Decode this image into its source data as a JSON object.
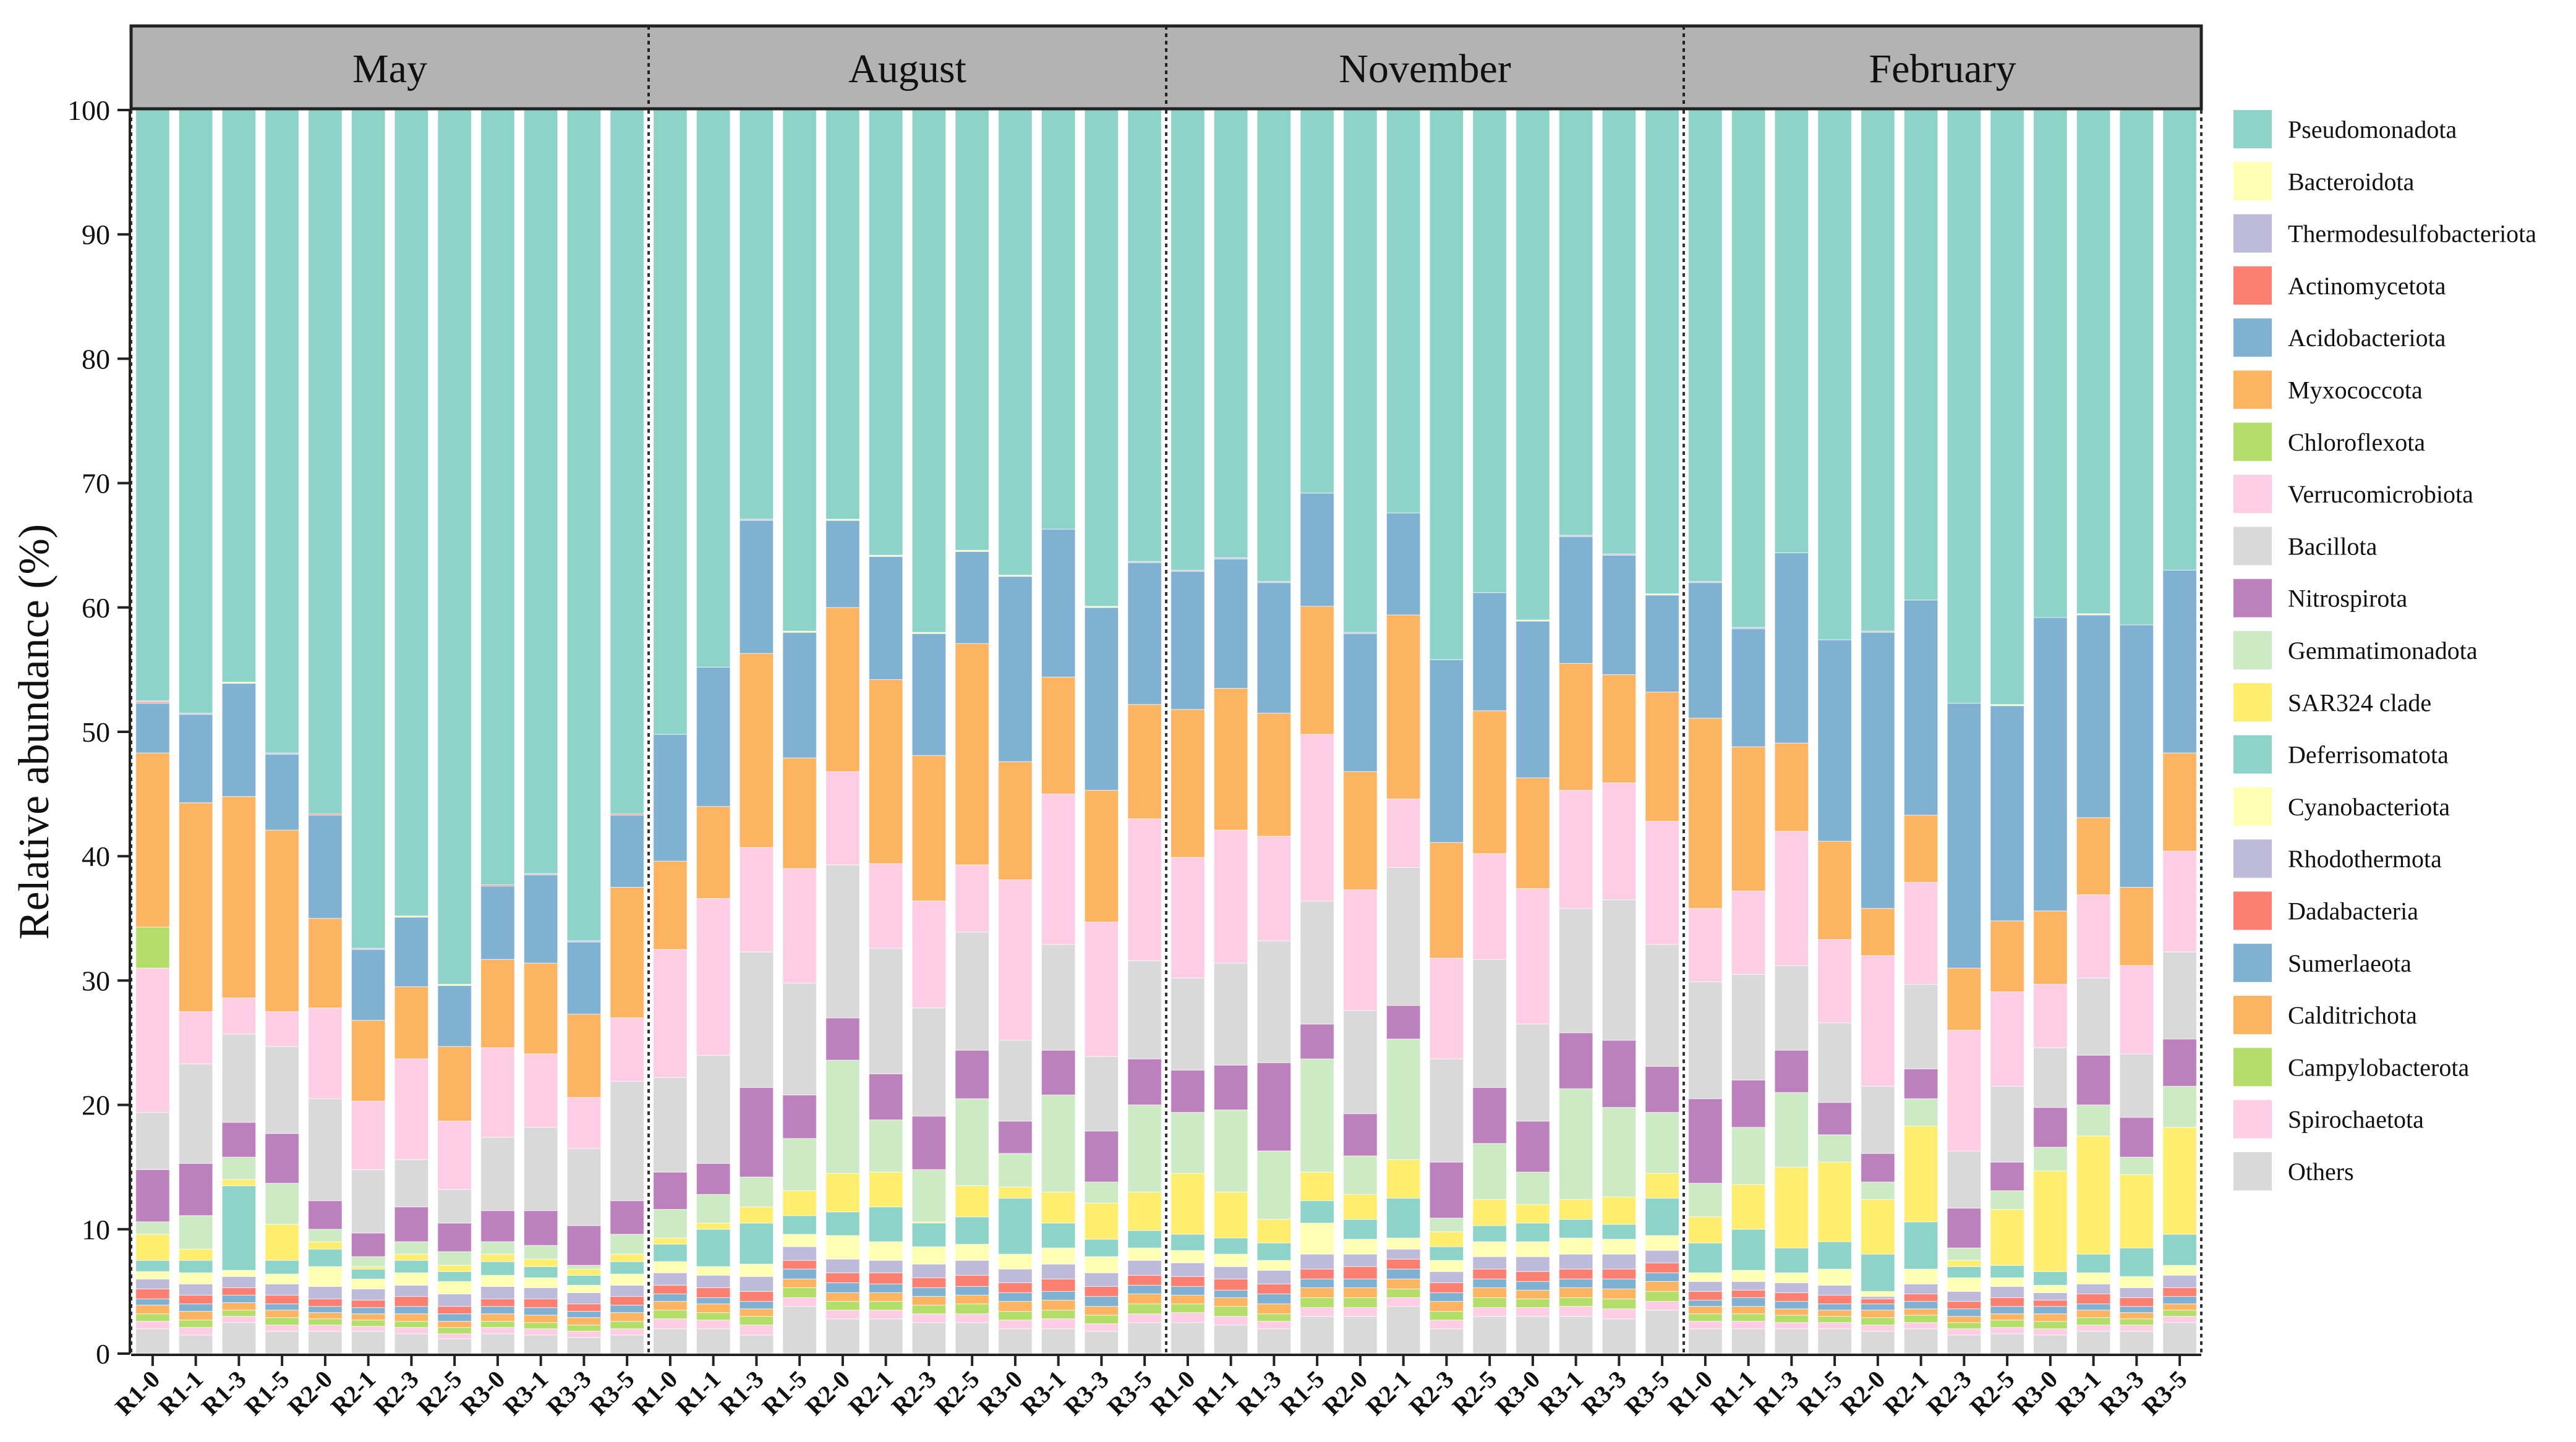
{
  "chart_data": {
    "type": "bar",
    "stacked": true,
    "ylabel": "Relative abundance  (%)",
    "ylim": [
      0,
      100
    ],
    "yticks": [
      0,
      10,
      20,
      30,
      40,
      50,
      60,
      70,
      80,
      90,
      100
    ],
    "panels": [
      "May",
      "August",
      "November",
      "February"
    ],
    "samples": [
      "R1-0",
      "R1-1",
      "R1-3",
      "R1-5",
      "R2-0",
      "R2-1",
      "R2-3",
      "R2-5",
      "R3-0",
      "R3-1",
      "R3-3",
      "R3-5"
    ],
    "legend": [
      {
        "name": "Pseudomonadota",
        "color": "#8dd3c7"
      },
      {
        "name": "Bacteroidota",
        "color": "#ffffb3"
      },
      {
        "name": "Thermodesulfobacteriota",
        "color": "#bebada"
      },
      {
        "name": "Actinomycetota",
        "color": "#fb8072"
      },
      {
        "name": "Acidobacteriota",
        "color": "#80b1d3"
      },
      {
        "name": "Myxococcota",
        "color": "#fdb462"
      },
      {
        "name": "Chloroflexota",
        "color": "#b3de69"
      },
      {
        "name": "Verrucomicrobiota",
        "color": "#fccde5"
      },
      {
        "name": "Bacillota",
        "color": "#d9d9d9"
      },
      {
        "name": "Nitrospirota",
        "color": "#bc80bd"
      },
      {
        "name": "Gemmatimonadota",
        "color": "#ccebc5"
      },
      {
        "name": "SAR324 clade",
        "color": "#ffed6f"
      },
      {
        "name": "Deferrisomatota",
        "color": "#8dd3c7"
      },
      {
        "name": "Cyanobacteriota",
        "color": "#ffffb3"
      },
      {
        "name": "Rhodothermota",
        "color": "#bebada"
      },
      {
        "name": "Dadabacteria",
        "color": "#fb8072"
      },
      {
        "name": "Sumerlaeota",
        "color": "#80b1d3"
      },
      {
        "name": "Calditrichota",
        "color": "#fdb462"
      },
      {
        "name": "Campylobacterota",
        "color": "#b3de69"
      },
      {
        "name": "Spirochaetota",
        "color": "#fccde5"
      },
      {
        "name": "Others",
        "color": "#d9d9d9"
      }
    ],
    "series_order_note": "Each sample: 21 boundaries = cumulative tops (%) from bottom (Others) upward; Pseudomonadota fills to 100.",
    "cumulative_tops": {
      "May": [
        [
          2.0,
          2.6,
          3.2,
          3.9,
          4.4,
          5.2,
          6.0,
          6.6,
          7.5,
          9.6,
          10.6,
          14.8,
          19.4,
          31.0,
          34.3,
          48.3,
          52.3,
          52.4,
          52.5,
          52.5,
          100
        ],
        [
          1.5,
          2.1,
          2.7,
          3.4,
          4.0,
          4.7,
          5.6,
          6.5,
          7.5,
          8.4,
          11.1,
          15.3,
          23.3,
          27.5,
          27.5,
          44.3,
          51.4,
          51.4,
          51.5,
          51.5,
          100
        ],
        [
          2.5,
          3.0,
          3.5,
          4.1,
          4.7,
          5.3,
          6.2,
          6.7,
          13.5,
          14.0,
          15.8,
          18.6,
          25.7,
          28.6,
          28.6,
          44.8,
          53.9,
          53.9,
          53.9,
          54.0,
          100
        ],
        [
          1.8,
          2.3,
          2.9,
          3.5,
          4.0,
          4.7,
          5.6,
          6.4,
          7.5,
          10.4,
          13.7,
          17.7,
          24.7,
          27.5,
          27.5,
          42.1,
          48.2,
          48.2,
          48.3,
          48.3,
          100
        ],
        [
          1.8,
          2.3,
          2.8,
          3.3,
          3.8,
          4.4,
          5.4,
          7.0,
          8.4,
          9.0,
          10.0,
          12.3,
          20.5,
          27.8,
          27.8,
          35.0,
          43.3,
          43.4,
          43.4,
          43.4,
          100
        ],
        [
          1.8,
          2.2,
          2.7,
          3.2,
          3.7,
          4.3,
          5.2,
          6.0,
          6.8,
          7.0,
          7.8,
          9.7,
          14.8,
          20.3,
          20.3,
          26.8,
          32.5,
          32.5,
          32.6,
          32.6,
          100
        ],
        [
          1.6,
          2.1,
          2.6,
          3.2,
          3.8,
          4.6,
          5.5,
          6.5,
          7.5,
          8.0,
          9.0,
          11.8,
          15.6,
          23.7,
          23.7,
          29.5,
          35.1,
          35.1,
          35.1,
          35.2,
          100
        ],
        [
          1.2,
          1.6,
          2.1,
          2.6,
          3.2,
          3.8,
          4.8,
          5.8,
          6.6,
          7.1,
          8.2,
          10.5,
          13.2,
          18.7,
          18.7,
          24.7,
          29.6,
          29.6,
          29.6,
          29.7,
          100
        ],
        [
          1.6,
          2.1,
          2.6,
          3.2,
          3.8,
          4.4,
          5.4,
          6.3,
          7.4,
          8.0,
          9.0,
          11.5,
          17.4,
          24.6,
          24.6,
          31.7,
          37.6,
          37.7,
          37.7,
          37.7,
          100
        ],
        [
          1.5,
          2.0,
          2.5,
          3.1,
          3.7,
          4.4,
          5.3,
          6.1,
          7.0,
          7.6,
          8.7,
          11.5,
          18.2,
          24.1,
          24.1,
          31.4,
          38.5,
          38.5,
          38.6,
          38.6,
          100
        ],
        [
          1.3,
          1.8,
          2.3,
          2.9,
          3.4,
          4.0,
          4.9,
          5.5,
          6.3,
          6.8,
          7.1,
          10.3,
          16.5,
          20.6,
          20.6,
          27.3,
          33.1,
          33.1,
          33.2,
          33.2,
          100
        ],
        [
          1.5,
          2.0,
          2.6,
          3.3,
          3.9,
          4.6,
          5.5,
          6.4,
          7.4,
          8.0,
          9.6,
          12.3,
          21.9,
          27.0,
          27.0,
          37.5,
          43.3,
          43.4,
          43.4,
          43.4,
          100
        ]
      ],
      "August": [
        [
          2.0,
          2.8,
          3.5,
          4.2,
          4.8,
          5.5,
          6.5,
          7.4,
          8.8,
          9.3,
          11.6,
          14.6,
          22.2,
          32.5,
          32.5,
          39.6,
          49.8,
          49.8,
          49.8,
          49.8,
          100
        ],
        [
          2.0,
          2.7,
          3.3,
          4.0,
          4.5,
          5.3,
          6.3,
          7.0,
          10.0,
          10.5,
          12.8,
          15.3,
          24.0,
          36.6,
          36.6,
          44.0,
          55.2,
          55.2,
          55.2,
          55.2,
          100
        ],
        [
          1.5,
          2.3,
          3.0,
          3.6,
          4.2,
          5.0,
          6.2,
          7.2,
          10.5,
          11.8,
          14.2,
          21.4,
          32.3,
          40.7,
          40.7,
          56.3,
          67.0,
          67.0,
          67.1,
          67.1,
          100
        ],
        [
          3.8,
          4.5,
          5.3,
          6.0,
          6.8,
          7.5,
          8.6,
          9.6,
          11.1,
          13.1,
          17.3,
          20.8,
          29.8,
          39.0,
          39.0,
          47.9,
          58.0,
          58.0,
          58.0,
          58.1,
          100
        ],
        [
          2.8,
          3.5,
          4.2,
          4.9,
          5.7,
          6.5,
          7.6,
          9.5,
          11.4,
          14.5,
          23.6,
          27.0,
          39.3,
          46.8,
          46.8,
          60.0,
          67.0,
          67.0,
          67.0,
          67.1,
          100
        ],
        [
          2.8,
          3.5,
          4.2,
          4.9,
          5.6,
          6.5,
          7.5,
          9.0,
          11.8,
          14.6,
          18.8,
          22.5,
          32.6,
          39.4,
          39.4,
          54.2,
          64.1,
          64.1,
          64.1,
          64.2,
          100
        ],
        [
          2.5,
          3.2,
          3.9,
          4.6,
          5.3,
          6.1,
          7.2,
          8.6,
          10.5,
          10.6,
          14.8,
          19.1,
          27.8,
          36.4,
          36.4,
          48.1,
          57.9,
          57.9,
          57.9,
          58.0,
          100
        ],
        [
          2.5,
          3.2,
          4.0,
          4.7,
          5.4,
          6.3,
          7.5,
          8.8,
          11.0,
          13.5,
          20.5,
          24.4,
          33.9,
          39.3,
          39.3,
          57.1,
          64.5,
          64.5,
          64.5,
          64.6,
          100
        ],
        [
          2.0,
          2.7,
          3.4,
          4.2,
          4.9,
          5.7,
          6.8,
          8.0,
          12.5,
          13.4,
          16.1,
          18.7,
          25.2,
          38.1,
          38.1,
          47.6,
          62.5,
          62.5,
          62.5,
          62.6,
          100
        ],
        [
          2.0,
          2.8,
          3.5,
          4.3,
          5.0,
          6.0,
          7.2,
          8.5,
          10.5,
          13.0,
          20.8,
          24.4,
          32.9,
          45.0,
          45.0,
          54.4,
          66.3,
          66.3,
          66.3,
          66.3,
          100
        ],
        [
          1.8,
          2.4,
          3.1,
          3.8,
          4.6,
          5.4,
          6.5,
          7.8,
          9.2,
          12.1,
          13.8,
          17.9,
          23.9,
          34.7,
          34.7,
          45.3,
          60.0,
          60.0,
          60.0,
          60.1,
          100
        ],
        [
          2.5,
          3.2,
          4.0,
          4.8,
          5.5,
          6.3,
          7.5,
          8.5,
          9.9,
          13.0,
          20.0,
          23.7,
          31.6,
          43.0,
          43.0,
          52.2,
          63.6,
          63.6,
          63.7,
          63.7,
          100
        ]
      ],
      "November": [
        [
          2.5,
          3.3,
          4.0,
          4.7,
          5.4,
          6.2,
          7.3,
          8.3,
          9.6,
          14.5,
          19.4,
          22.8,
          30.2,
          39.9,
          39.9,
          51.8,
          62.9,
          62.9,
          63.0,
          63.0,
          100
        ],
        [
          2.3,
          3.0,
          3.8,
          4.5,
          5.1,
          6.0,
          7.0,
          8.0,
          9.3,
          13.0,
          19.6,
          23.2,
          31.4,
          42.1,
          42.1,
          53.5,
          63.9,
          63.9,
          64.0,
          64.0,
          100
        ],
        [
          2.0,
          2.6,
          3.2,
          4.0,
          4.8,
          5.6,
          6.7,
          7.5,
          8.9,
          10.8,
          16.3,
          23.4,
          33.2,
          41.6,
          41.6,
          51.5,
          62.0,
          62.0,
          62.1,
          62.1,
          100
        ],
        [
          3.0,
          3.7,
          4.5,
          5.3,
          6.0,
          6.8,
          8.0,
          10.5,
          12.3,
          14.6,
          23.7,
          26.5,
          36.4,
          49.8,
          49.8,
          60.1,
          69.2,
          69.2,
          69.2,
          69.2,
          100
        ],
        [
          3.0,
          3.7,
          4.5,
          5.3,
          6.0,
          7.0,
          8.0,
          9.2,
          10.8,
          12.8,
          15.9,
          19.3,
          27.6,
          37.3,
          37.3,
          46.8,
          57.9,
          57.9,
          58.0,
          58.0,
          100
        ],
        [
          3.8,
          4.5,
          5.2,
          6.0,
          6.8,
          7.6,
          8.4,
          9.3,
          12.5,
          15.6,
          25.3,
          28.0,
          39.1,
          44.6,
          44.6,
          59.4,
          67.6,
          67.6,
          67.6,
          67.6,
          100
        ],
        [
          2.0,
          2.7,
          3.4,
          4.2,
          4.9,
          5.7,
          6.6,
          7.5,
          8.6,
          9.8,
          10.9,
          15.4,
          23.7,
          31.8,
          31.8,
          41.1,
          55.8,
          55.8,
          55.8,
          55.8,
          100
        ],
        [
          3.0,
          3.7,
          4.5,
          5.3,
          6.0,
          6.8,
          7.8,
          9.0,
          10.3,
          12.4,
          16.9,
          21.4,
          31.7,
          40.2,
          40.2,
          51.7,
          61.2,
          61.2,
          61.2,
          61.2,
          100
        ],
        [
          3.0,
          3.7,
          4.4,
          5.1,
          5.8,
          6.6,
          7.8,
          9.0,
          10.5,
          12.0,
          14.6,
          18.7,
          26.5,
          37.4,
          37.4,
          46.3,
          58.9,
          58.9,
          58.9,
          59.0,
          100
        ],
        [
          3.0,
          3.8,
          4.5,
          5.3,
          6.0,
          6.8,
          8.0,
          9.3,
          10.8,
          12.4,
          21.3,
          25.8,
          35.8,
          45.3,
          45.3,
          55.5,
          65.7,
          65.7,
          65.8,
          65.8,
          100
        ],
        [
          2.8,
          3.6,
          4.4,
          5.2,
          6.0,
          6.8,
          8.0,
          9.2,
          10.4,
          12.6,
          19.8,
          25.2,
          36.5,
          45.9,
          45.9,
          54.6,
          64.2,
          64.2,
          64.3,
          64.3,
          100
        ],
        [
          3.5,
          4.2,
          5.0,
          5.8,
          6.5,
          7.3,
          8.3,
          9.5,
          12.5,
          14.5,
          19.4,
          23.1,
          32.9,
          42.8,
          42.8,
          53.2,
          61.0,
          61.0,
          61.0,
          61.1,
          100
        ]
      ],
      "February": [
        [
          2.0,
          2.6,
          3.2,
          3.8,
          4.3,
          5.0,
          5.8,
          6.5,
          8.9,
          11.0,
          13.7,
          20.5,
          29.9,
          35.8,
          35.8,
          51.1,
          62.0,
          62.0,
          62.1,
          62.1,
          100
        ],
        [
          2.0,
          2.6,
          3.2,
          3.8,
          4.5,
          5.1,
          5.8,
          6.7,
          10.0,
          13.6,
          18.2,
          22.0,
          30.5,
          37.2,
          37.2,
          48.8,
          58.3,
          58.3,
          58.4,
          58.4,
          100
        ],
        [
          2.0,
          2.5,
          3.1,
          3.6,
          4.2,
          4.9,
          5.7,
          6.5,
          8.5,
          15.0,
          21.0,
          24.4,
          31.2,
          42.0,
          42.0,
          49.1,
          64.4,
          64.4,
          64.4,
          64.4,
          100
        ],
        [
          2.0,
          2.5,
          3.0,
          3.5,
          4.0,
          4.7,
          5.5,
          6.8,
          9.0,
          15.4,
          17.6,
          20.2,
          26.6,
          33.3,
          33.3,
          41.2,
          57.4,
          57.4,
          57.4,
          57.4,
          100
        ],
        [
          1.8,
          2.3,
          2.9,
          3.5,
          4.0,
          4.4,
          4.6,
          5.0,
          8.0,
          12.4,
          13.8,
          16.1,
          21.5,
          32.0,
          32.0,
          35.8,
          58.0,
          58.0,
          58.1,
          58.1,
          100
        ],
        [
          2.0,
          2.5,
          3.1,
          3.6,
          4.2,
          4.8,
          5.6,
          6.8,
          10.6,
          18.3,
          20.5,
          22.9,
          29.7,
          37.9,
          37.9,
          43.3,
          60.6,
          60.6,
          60.6,
          60.6,
          100
        ],
        [
          1.5,
          2.0,
          2.5,
          3.0,
          3.6,
          4.2,
          5.0,
          6.1,
          7.0,
          7.5,
          8.5,
          11.7,
          16.3,
          26.0,
          26.0,
          31.0,
          52.3,
          52.3,
          52.3,
          52.3,
          100
        ],
        [
          1.6,
          2.1,
          2.7,
          3.2,
          3.8,
          4.5,
          5.4,
          6.1,
          7.1,
          11.6,
          13.1,
          15.4,
          21.5,
          29.1,
          29.1,
          34.8,
          52.1,
          52.1,
          52.1,
          52.2,
          100
        ],
        [
          1.5,
          2.0,
          2.6,
          3.2,
          3.8,
          4.3,
          4.9,
          5.5,
          6.6,
          14.7,
          16.6,
          19.8,
          24.6,
          29.7,
          29.7,
          35.6,
          59.2,
          59.2,
          59.2,
          59.2,
          100
        ],
        [
          1.8,
          2.3,
          2.9,
          3.5,
          4.0,
          4.8,
          5.6,
          6.5,
          8.0,
          17.5,
          20.0,
          24.0,
          30.2,
          36.9,
          36.9,
          43.1,
          59.4,
          59.4,
          59.4,
          59.5,
          100
        ],
        [
          1.8,
          2.3,
          2.8,
          3.3,
          3.8,
          4.5,
          5.3,
          6.2,
          8.5,
          14.4,
          15.8,
          19.0,
          24.1,
          31.2,
          31.2,
          37.5,
          58.6,
          58.6,
          58.6,
          58.6,
          100
        ],
        [
          2.5,
          3.0,
          3.5,
          4.0,
          4.6,
          5.3,
          6.3,
          7.1,
          9.6,
          18.2,
          21.5,
          25.3,
          32.3,
          40.4,
          40.4,
          48.3,
          63.0,
          63.0,
          63.0,
          63.0,
          100
        ]
      ]
    }
  }
}
